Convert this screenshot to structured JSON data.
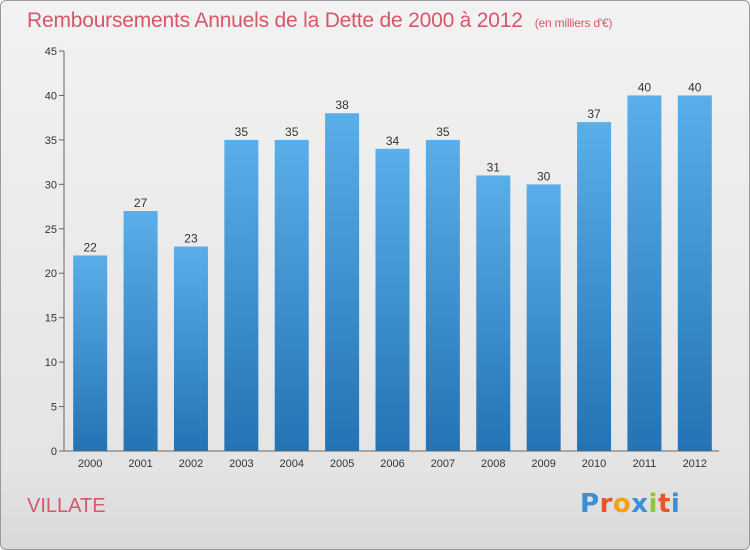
{
  "header": {
    "title": "Remboursements Annuels de la Dette de 2000 à 2012",
    "unit": "(en milliers d'€)"
  },
  "footer": {
    "town": "VILLATE",
    "logo_letters": [
      "P",
      "r",
      "o",
      "x",
      "i",
      "t",
      "i"
    ],
    "logo_colors": [
      "#3a8fd6",
      "#e8552a",
      "#f2a114",
      "#3a8fd6",
      "#8cc63f",
      "#e8552a",
      "#3a8fd6"
    ]
  },
  "chart_data": {
    "type": "bar",
    "title": "Remboursements Annuels de la Dette de 2000 à 2012",
    "categories": [
      "2000",
      "2001",
      "2002",
      "2003",
      "2004",
      "2005",
      "2006",
      "2007",
      "2008",
      "2009",
      "2010",
      "2011",
      "2012"
    ],
    "values": [
      22,
      27,
      23,
      35,
      35,
      38,
      34,
      35,
      31,
      30,
      37,
      40,
      40
    ],
    "ylim": [
      0,
      45
    ],
    "yticks": [
      0,
      5,
      10,
      15,
      20,
      25,
      30,
      35,
      40,
      45
    ],
    "grid": false,
    "bar_color_top": "#5aaee9",
    "bar_color_bottom": "#2473b4"
  }
}
